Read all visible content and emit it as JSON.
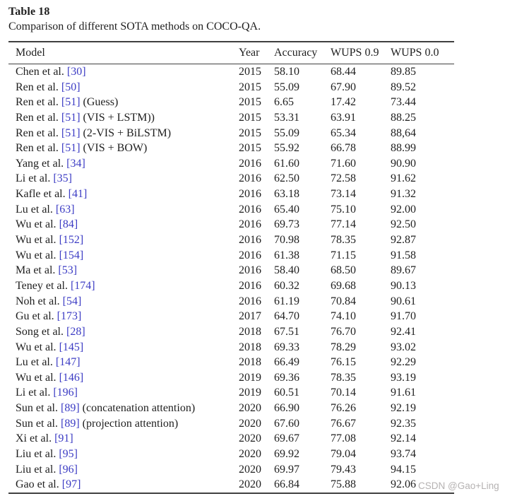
{
  "page": {
    "table_label": "Table 18",
    "caption": "Comparison of different SOTA methods on COCO-QA.",
    "watermark": "CSDN @Gao+Ling"
  },
  "colors": {
    "citation_blue": "#3c3cc4",
    "watermark_gray": "#b5b2b2",
    "rule_dark": "#404040",
    "text": "#1f1f1f"
  },
  "table": {
    "columns": [
      "Model",
      "Year",
      "Accuracy",
      "WUPS 0.9",
      "WUPS 0.0"
    ],
    "rows": [
      {
        "model_prefix": "Chen et al. ",
        "citation": "[30]",
        "model_suffix": "",
        "year": "2015",
        "accuracy": "58.10",
        "wups_09": "68.44",
        "wups_00": "89.85"
      },
      {
        "model_prefix": "Ren et al. ",
        "citation": "[50]",
        "model_suffix": "",
        "year": "2015",
        "accuracy": "55.09",
        "wups_09": "67.90",
        "wups_00": "89.52"
      },
      {
        "model_prefix": "Ren et al. ",
        "citation": "[51]",
        "model_suffix": " (Guess)",
        "year": "2015",
        "accuracy": "6.65",
        "wups_09": "17.42",
        "wups_00": "73.44"
      },
      {
        "model_prefix": "Ren et al. ",
        "citation": "[51]",
        "model_suffix": " (VIS + LSTM))",
        "year": "2015",
        "accuracy": "53.31",
        "wups_09": "63.91",
        "wups_00": "88.25"
      },
      {
        "model_prefix": "Ren et al. ",
        "citation": "[51]",
        "model_suffix": " (2-VIS + BiLSTM)",
        "year": "2015",
        "accuracy": "55.09",
        "wups_09": "65.34",
        "wups_00": "88,64"
      },
      {
        "model_prefix": "Ren et al. ",
        "citation": "[51]",
        "model_suffix": " (VIS + BOW)",
        "year": "2015",
        "accuracy": "55.92",
        "wups_09": "66.78",
        "wups_00": "88.99"
      },
      {
        "model_prefix": "Yang et al. ",
        "citation": "[34]",
        "model_suffix": "",
        "year": "2016",
        "accuracy": "61.60",
        "wups_09": "71.60",
        "wups_00": "90.90"
      },
      {
        "model_prefix": "Li et al. ",
        "citation": "[35]",
        "model_suffix": "",
        "year": "2016",
        "accuracy": "62.50",
        "wups_09": "72.58",
        "wups_00": "91.62"
      },
      {
        "model_prefix": "Kafle et al. ",
        "citation": "[41]",
        "model_suffix": "",
        "year": "2016",
        "accuracy": "63.18",
        "wups_09": "73.14",
        "wups_00": "91.32"
      },
      {
        "model_prefix": "Lu et al. ",
        "citation": "[63]",
        "model_suffix": "",
        "year": "2016",
        "accuracy": "65.40",
        "wups_09": "75.10",
        "wups_00": "92.00"
      },
      {
        "model_prefix": "Wu et al. ",
        "citation": "[84]",
        "model_suffix": "",
        "year": "2016",
        "accuracy": "69.73",
        "wups_09": "77.14",
        "wups_00": "92.50"
      },
      {
        "model_prefix": "Wu et al. ",
        "citation": "[152]",
        "model_suffix": "",
        "year": "2016",
        "accuracy": "70.98",
        "wups_09": "78.35",
        "wups_00": "92.87"
      },
      {
        "model_prefix": "Wu et al. ",
        "citation": "[154]",
        "model_suffix": "",
        "year": "2016",
        "accuracy": "61.38",
        "wups_09": "71.15",
        "wups_00": "91.58"
      },
      {
        "model_prefix": "Ma et al. ",
        "citation": "[53]",
        "model_suffix": "",
        "year": "2016",
        "accuracy": "58.40",
        "wups_09": "68.50",
        "wups_00": "89.67"
      },
      {
        "model_prefix": "Teney et al. ",
        "citation": "[174]",
        "model_suffix": "",
        "year": "2016",
        "accuracy": "60.32",
        "wups_09": "69.68",
        "wups_00": "90.13"
      },
      {
        "model_prefix": "Noh et al. ",
        "citation": "[54]",
        "model_suffix": "",
        "year": "2016",
        "accuracy": "61.19",
        "wups_09": "70.84",
        "wups_00": "90.61"
      },
      {
        "model_prefix": "Gu et al. ",
        "citation": "[173]",
        "model_suffix": "",
        "year": "2017",
        "accuracy": "64.70",
        "wups_09": "74.10",
        "wups_00": "91.70"
      },
      {
        "model_prefix": "Song et al. ",
        "citation": "[28]",
        "model_suffix": "",
        "year": "2018",
        "accuracy": "67.51",
        "wups_09": "76.70",
        "wups_00": "92.41"
      },
      {
        "model_prefix": "Wu et al. ",
        "citation": "[145]",
        "model_suffix": "",
        "year": "2018",
        "accuracy": "69.33",
        "wups_09": "78.29",
        "wups_00": "93.02"
      },
      {
        "model_prefix": "Lu et al. ",
        "citation": "[147]",
        "model_suffix": "",
        "year": "2018",
        "accuracy": "66.49",
        "wups_09": "76.15",
        "wups_00": "92.29"
      },
      {
        "model_prefix": "Wu et al. ",
        "citation": "[146]",
        "model_suffix": "",
        "year": "2019",
        "accuracy": "69.36",
        "wups_09": "78.35",
        "wups_00": "93.19"
      },
      {
        "model_prefix": "Li et al. ",
        "citation": "[196]",
        "model_suffix": "",
        "year": "2019",
        "accuracy": "60.51",
        "wups_09": "70.14",
        "wups_00": "91.61"
      },
      {
        "model_prefix": "Sun et al. ",
        "citation": "[89]",
        "model_suffix": " (concatenation attention)",
        "year": "2020",
        "accuracy": "66.90",
        "wups_09": "76.26",
        "wups_00": "92.19"
      },
      {
        "model_prefix": "Sun et al. ",
        "citation": "[89]",
        "model_suffix": " (projection attention)",
        "year": "2020",
        "accuracy": "67.60",
        "wups_09": "76.67",
        "wups_00": "92.35"
      },
      {
        "model_prefix": "Xi et al. ",
        "citation": "[91]",
        "model_suffix": "",
        "year": "2020",
        "accuracy": "69.67",
        "wups_09": "77.08",
        "wups_00": "92.14"
      },
      {
        "model_prefix": "Liu et al. ",
        "citation": "[95]",
        "model_suffix": "",
        "year": "2020",
        "accuracy": "69.92",
        "wups_09": "79.04",
        "wups_00": "93.74"
      },
      {
        "model_prefix": "Liu et al. ",
        "citation": "[96]",
        "model_suffix": "",
        "year": "2020",
        "accuracy": "69.97",
        "wups_09": "79.43",
        "wups_00": "94.15"
      },
      {
        "model_prefix": "Gao et al. ",
        "citation": "[97]",
        "model_suffix": "",
        "year": "2020",
        "accuracy": "66.84",
        "wups_09": "75.88",
        "wups_00": "92.06"
      }
    ]
  }
}
